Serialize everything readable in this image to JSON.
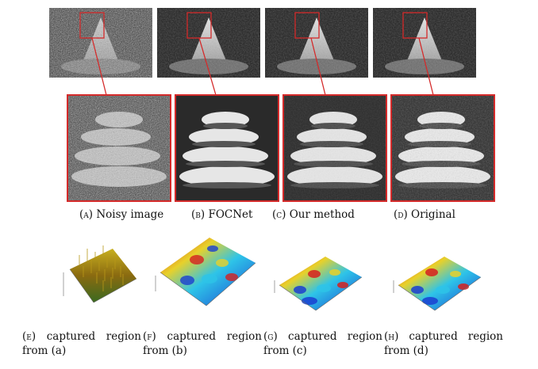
{
  "figure": {
    "top_captions": [
      {
        "tag": "(a)",
        "text": "Noisy image"
      },
      {
        "tag": "(b)",
        "text": "FOCNet"
      },
      {
        "tag": "(c)",
        "text": "Our method"
      },
      {
        "tag": "(d)",
        "text": "Original"
      }
    ],
    "bottom_captions": [
      {
        "tag": "(e)",
        "line1": "captured region",
        "line2": "from (a)"
      },
      {
        "tag": "(f)",
        "line1": "captured region",
        "line2": "from (b)"
      },
      {
        "tag": "(g)",
        "line1": "captured region",
        "line2": "from (c)"
      },
      {
        "tag": "(h)",
        "line1": "captured region",
        "line2": "from (d)"
      }
    ],
    "colors": {
      "highlight": "#d42a2a",
      "surface_low": "#1a3fd1",
      "surface_high": "#d62020"
    }
  }
}
